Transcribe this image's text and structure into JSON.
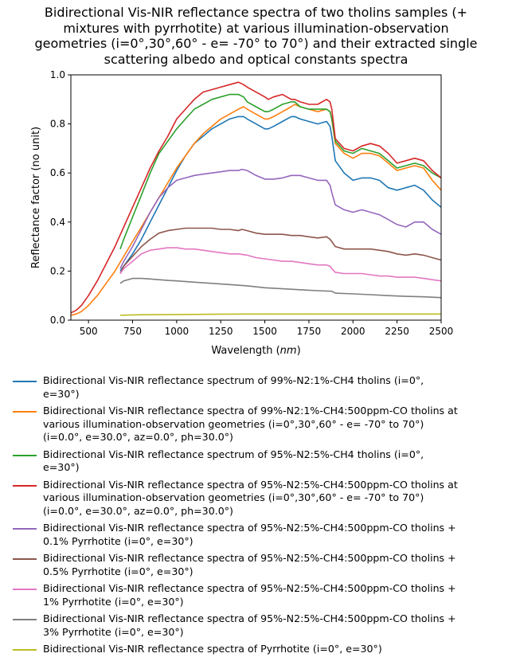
{
  "chart_data": {
    "type": "line",
    "title_lines": [
      "Bidirectional Vis-NIR reflectance spectra of two tholins samples (+",
      "mixtures with pyrrhotite) at various illumination-observation",
      "geometries (i=0°,30°,60° - e= -70° to 70°) and their extracted single",
      "scattering albedo and optical constants spectra"
    ],
    "xlabel": "Wavelength (nm)",
    "ylabel": "Reflectance factor (no unit)",
    "xlim": [
      400,
      2500
    ],
    "ylim": [
      0.0,
      1.0
    ],
    "xticks": [
      "500",
      "750",
      "1000",
      "1250",
      "1500",
      "1750",
      "2000",
      "2250",
      "2500"
    ],
    "yticks": [
      "0.0",
      "0.2",
      "0.4",
      "0.6",
      "0.8",
      "1.0"
    ],
    "grid": false,
    "legend_position": "below",
    "series": [
      {
        "name_lines": [
          "Bidirectional Vis-NIR reflectance spectrum of 99%-N2:1%-CH4 tholins (i=0°,",
          "e=30°)"
        ],
        "color": "#1f77b4",
        "x": [
          680,
          700,
          750,
          800,
          850,
          900,
          950,
          1000,
          1050,
          1100,
          1150,
          1200,
          1250,
          1300,
          1350,
          1380,
          1400,
          1450,
          1500,
          1520,
          1550,
          1600,
          1650,
          1670,
          1700,
          1750,
          1800,
          1850,
          1870,
          1880,
          1900,
          1950,
          2000,
          2050,
          2100,
          2150,
          2200,
          2250,
          2300,
          2350,
          2400,
          2450,
          2500
        ],
        "y": [
          0.2,
          0.22,
          0.27,
          0.33,
          0.4,
          0.47,
          0.54,
          0.61,
          0.67,
          0.72,
          0.75,
          0.78,
          0.8,
          0.82,
          0.83,
          0.83,
          0.82,
          0.8,
          0.78,
          0.78,
          0.79,
          0.81,
          0.83,
          0.83,
          0.82,
          0.81,
          0.8,
          0.81,
          0.79,
          0.75,
          0.65,
          0.6,
          0.57,
          0.58,
          0.58,
          0.57,
          0.54,
          0.53,
          0.54,
          0.55,
          0.53,
          0.49,
          0.46
        ]
      },
      {
        "name_lines": [
          "Bidirectional Vis-NIR reflectance spectra of 99%-N2:1%-CH4:500ppm-CO tholins at",
          "various illumination-observation geometries (i=0°,30°,60° - e= -70° to 70°)",
          "(i=0.0°, e=30.0°, az=0.0°, ph=30.0°)"
        ],
        "color": "#ff7f0e",
        "x": [
          400,
          430,
          460,
          500,
          550,
          600,
          650,
          700,
          750,
          800,
          850,
          900,
          950,
          1000,
          1050,
          1100,
          1150,
          1200,
          1250,
          1300,
          1350,
          1380,
          1400,
          1450,
          1500,
          1520,
          1550,
          1600,
          1650,
          1670,
          1700,
          1750,
          1800,
          1850,
          1870,
          1880,
          1900,
          1950,
          2000,
          2050,
          2100,
          2150,
          2200,
          2250,
          2300,
          2350,
          2400,
          2450,
          2500
        ],
        "y": [
          0.02,
          0.025,
          0.035,
          0.06,
          0.1,
          0.15,
          0.2,
          0.26,
          0.32,
          0.38,
          0.44,
          0.5,
          0.56,
          0.62,
          0.67,
          0.72,
          0.76,
          0.79,
          0.82,
          0.84,
          0.86,
          0.87,
          0.86,
          0.84,
          0.82,
          0.82,
          0.83,
          0.85,
          0.87,
          0.88,
          0.87,
          0.86,
          0.85,
          0.86,
          0.85,
          0.82,
          0.72,
          0.68,
          0.66,
          0.68,
          0.68,
          0.67,
          0.64,
          0.61,
          0.62,
          0.63,
          0.62,
          0.57,
          0.53
        ]
      },
      {
        "name_lines": [
          "Bidirectional Vis-NIR reflectance spectrum of 95%-N2:5%-CH4 tholins (i=0°,",
          "e=30°)"
        ],
        "color": "#2ca02c",
        "x": [
          680,
          700,
          750,
          800,
          850,
          900,
          950,
          1000,
          1050,
          1100,
          1150,
          1200,
          1250,
          1300,
          1350,
          1380,
          1400,
          1450,
          1500,
          1520,
          1550,
          1600,
          1650,
          1670,
          1700,
          1750,
          1800,
          1850,
          1870,
          1880,
          1900,
          1950,
          2000,
          2050,
          2100,
          2150,
          2200,
          2250,
          2300,
          2350,
          2400,
          2450,
          2500
        ],
        "y": [
          0.29,
          0.33,
          0.42,
          0.51,
          0.6,
          0.68,
          0.73,
          0.78,
          0.82,
          0.86,
          0.88,
          0.9,
          0.91,
          0.92,
          0.92,
          0.91,
          0.89,
          0.87,
          0.85,
          0.85,
          0.86,
          0.88,
          0.89,
          0.89,
          0.87,
          0.86,
          0.86,
          0.86,
          0.85,
          0.82,
          0.73,
          0.69,
          0.68,
          0.7,
          0.69,
          0.68,
          0.65,
          0.62,
          0.63,
          0.64,
          0.63,
          0.6,
          0.58
        ]
      },
      {
        "name_lines": [
          "Bidirectional Vis-NIR reflectance spectra of 95%-N2:5%-CH4:500ppm-CO tholins at",
          "various illumination-observation geometries (i=0°,30°,60° - e= -70° to 70°)",
          "(i=0.0°, e=30.0°, az=0.0°, ph=30.0°)"
        ],
        "color": "#d62728",
        "x": [
          400,
          430,
          460,
          500,
          550,
          600,
          650,
          700,
          750,
          800,
          850,
          900,
          950,
          1000,
          1050,
          1100,
          1150,
          1200,
          1250,
          1300,
          1350,
          1380,
          1400,
          1450,
          1500,
          1520,
          1550,
          1600,
          1650,
          1670,
          1700,
          1750,
          1800,
          1850,
          1870,
          1880,
          1900,
          1950,
          2000,
          2050,
          2100,
          2150,
          2200,
          2250,
          2300,
          2350,
          2400,
          2450,
          2500
        ],
        "y": [
          0.03,
          0.04,
          0.06,
          0.1,
          0.16,
          0.23,
          0.3,
          0.38,
          0.46,
          0.54,
          0.62,
          0.69,
          0.75,
          0.82,
          0.86,
          0.9,
          0.93,
          0.94,
          0.95,
          0.96,
          0.97,
          0.96,
          0.95,
          0.93,
          0.91,
          0.9,
          0.91,
          0.92,
          0.9,
          0.9,
          0.89,
          0.88,
          0.88,
          0.9,
          0.89,
          0.86,
          0.74,
          0.7,
          0.69,
          0.71,
          0.72,
          0.71,
          0.68,
          0.64,
          0.65,
          0.66,
          0.65,
          0.61,
          0.58
        ]
      },
      {
        "name_lines": [
          "Bidirectional Vis-NIR reflectance spectra of 95%-N2:5%-CH4:500ppm-CO tholins +",
          "0.1% Pyrrhotite (i=0°, e=30°)"
        ],
        "color": "#9467bd",
        "x": [
          680,
          700,
          750,
          800,
          850,
          900,
          950,
          1000,
          1050,
          1100,
          1150,
          1200,
          1250,
          1300,
          1350,
          1370,
          1400,
          1450,
          1500,
          1550,
          1600,
          1650,
          1700,
          1750,
          1800,
          1850,
          1870,
          1880,
          1900,
          1950,
          2000,
          2050,
          2100,
          2150,
          2200,
          2250,
          2300,
          2350,
          2400,
          2450,
          2500
        ],
        "y": [
          0.21,
          0.24,
          0.3,
          0.37,
          0.44,
          0.5,
          0.54,
          0.57,
          0.58,
          0.59,
          0.595,
          0.6,
          0.605,
          0.61,
          0.61,
          0.615,
          0.61,
          0.59,
          0.575,
          0.575,
          0.58,
          0.59,
          0.59,
          0.58,
          0.57,
          0.57,
          0.55,
          0.52,
          0.47,
          0.45,
          0.44,
          0.45,
          0.44,
          0.43,
          0.41,
          0.39,
          0.38,
          0.4,
          0.4,
          0.37,
          0.35
        ]
      },
      {
        "name_lines": [
          "Bidirectional Vis-NIR reflectance spectra of 95%-N2:5%-CH4:500ppm-CO tholins +",
          "0.5% Pyrrhotite (i=0°, e=30°)"
        ],
        "color": "#8c564b",
        "x": [
          680,
          700,
          750,
          800,
          850,
          900,
          950,
          1000,
          1050,
          1100,
          1150,
          1200,
          1250,
          1300,
          1350,
          1370,
          1400,
          1450,
          1500,
          1550,
          1600,
          1650,
          1700,
          1750,
          1800,
          1850,
          1870,
          1880,
          1900,
          1950,
          2000,
          2050,
          2100,
          2150,
          2200,
          2250,
          2300,
          2350,
          2400,
          2450,
          2500
        ],
        "y": [
          0.19,
          0.22,
          0.26,
          0.3,
          0.33,
          0.355,
          0.365,
          0.37,
          0.375,
          0.375,
          0.375,
          0.375,
          0.37,
          0.37,
          0.365,
          0.37,
          0.365,
          0.355,
          0.35,
          0.35,
          0.35,
          0.345,
          0.345,
          0.34,
          0.335,
          0.34,
          0.33,
          0.32,
          0.3,
          0.29,
          0.29,
          0.29,
          0.29,
          0.285,
          0.28,
          0.27,
          0.265,
          0.27,
          0.265,
          0.255,
          0.245
        ]
      },
      {
        "name_lines": [
          "Bidirectional Vis-NIR reflectance spectra of 95%-N2:5%-CH4:500ppm-CO tholins +",
          "1% Pyrrhotite (i=0°, e=30°)"
        ],
        "color": "#e377c2",
        "x": [
          680,
          700,
          750,
          800,
          850,
          900,
          950,
          1000,
          1050,
          1100,
          1150,
          1200,
          1250,
          1300,
          1350,
          1400,
          1450,
          1500,
          1550,
          1600,
          1650,
          1700,
          1750,
          1800,
          1850,
          1870,
          1880,
          1900,
          1950,
          2000,
          2050,
          2100,
          2150,
          2200,
          2250,
          2300,
          2350,
          2400,
          2450,
          2500
        ],
        "y": [
          0.19,
          0.21,
          0.24,
          0.27,
          0.285,
          0.29,
          0.295,
          0.295,
          0.29,
          0.29,
          0.285,
          0.28,
          0.275,
          0.27,
          0.27,
          0.265,
          0.255,
          0.25,
          0.245,
          0.24,
          0.24,
          0.235,
          0.23,
          0.225,
          0.225,
          0.22,
          0.21,
          0.195,
          0.19,
          0.19,
          0.19,
          0.185,
          0.18,
          0.18,
          0.175,
          0.175,
          0.175,
          0.17,
          0.165,
          0.16
        ]
      },
      {
        "name_lines": [
          "Bidirectional Vis-NIR reflectance spectra of 95%-N2:5%-CH4:500ppm-CO tholins +",
          "3% Pyrrhotite (i=0°, e=30°)"
        ],
        "color": "#7f7f7f",
        "x": [
          680,
          700,
          750,
          800,
          850,
          900,
          950,
          1000,
          1100,
          1200,
          1300,
          1400,
          1500,
          1600,
          1700,
          1800,
          1880,
          1900,
          2000,
          2100,
          2200,
          2300,
          2400,
          2500
        ],
        "y": [
          0.15,
          0.16,
          0.17,
          0.17,
          0.168,
          0.165,
          0.162,
          0.16,
          0.155,
          0.15,
          0.145,
          0.14,
          0.132,
          0.128,
          0.124,
          0.12,
          0.118,
          0.11,
          0.107,
          0.104,
          0.1,
          0.097,
          0.095,
          0.092
        ]
      },
      {
        "name_lines": [
          "Bidirectional Vis-NIR reflectance spectra of Pyrrhotite (i=0°, e=30°)"
        ],
        "color": "#bcbd22",
        "x": [
          680,
          800,
          1000,
          1200,
          1400,
          1600,
          1800,
          2000,
          2200,
          2400,
          2500
        ],
        "y": [
          0.02,
          0.022,
          0.023,
          0.024,
          0.025,
          0.025,
          0.025,
          0.025,
          0.025,
          0.025,
          0.025
        ]
      }
    ]
  }
}
